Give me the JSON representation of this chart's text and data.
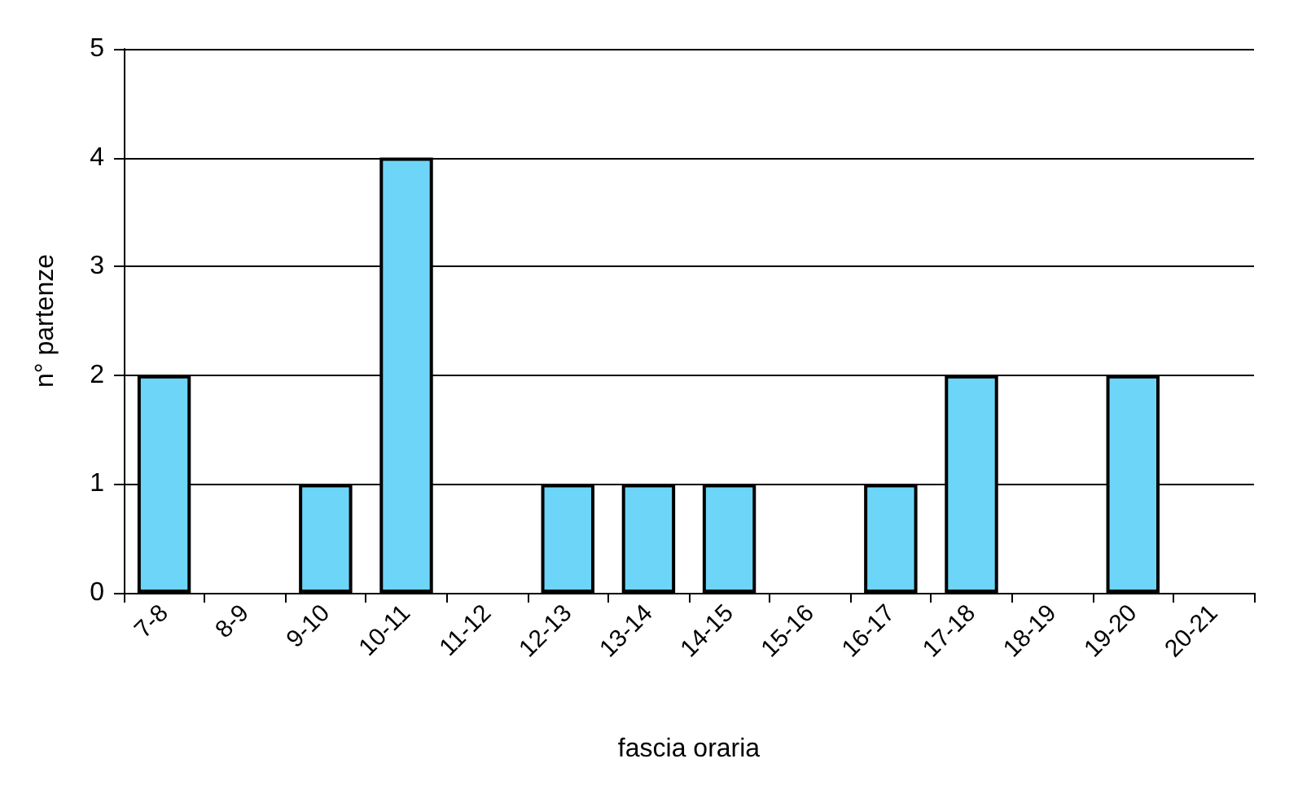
{
  "chart_data": {
    "type": "bar",
    "xlabel": "fascia oraria",
    "ylabel": "n° partenze",
    "categories": [
      "7-8",
      "8-9",
      "9-10",
      "10-11",
      "11-12",
      "12-13",
      "13-14",
      "14-15",
      "15-16",
      "16-17",
      "17-18",
      "18-19",
      "19-20",
      "20-21"
    ],
    "values": [
      2,
      0,
      1,
      4,
      0,
      1,
      1,
      1,
      0,
      1,
      2,
      0,
      2,
      0
    ],
    "color": "#6dd6f8",
    "ylim": [
      0,
      5
    ],
    "yticks": [
      0,
      1,
      2,
      3,
      4,
      5
    ],
    "grid": "y"
  }
}
